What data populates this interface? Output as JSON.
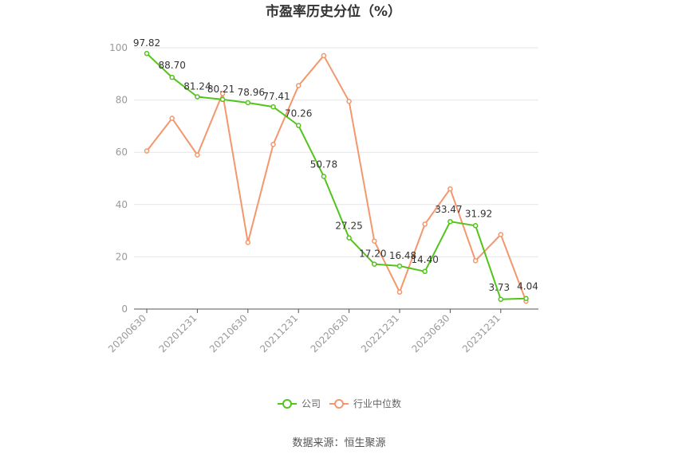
{
  "chart_data": {
    "type": "line",
    "title": "市盈率历史分位（%）",
    "xlabel": "",
    "ylabel": "",
    "ylim": [
      0,
      100
    ],
    "yticks": [
      0,
      20,
      40,
      60,
      80,
      100
    ],
    "grid": true,
    "legend_position": "bottom",
    "x": [
      "20200630",
      "20200930",
      "20201231",
      "20210331",
      "20210630",
      "20210930",
      "20211231",
      "20220331",
      "20220630",
      "20220930",
      "20221231",
      "20230331",
      "20230630",
      "20230930",
      "20231231",
      "20240331"
    ],
    "x_tick_labels": [
      "20200630",
      "20201231",
      "20210630",
      "20211231",
      "20220630",
      "20221231",
      "20230630",
      "20231231"
    ],
    "series": [
      {
        "name": "公司",
        "color": "#52c41a",
        "values": [
          97.82,
          88.7,
          81.24,
          80.21,
          78.96,
          77.41,
          70.26,
          50.78,
          27.25,
          17.2,
          16.48,
          14.4,
          33.47,
          31.92,
          3.73,
          4.04
        ],
        "labels": [
          "97.82",
          "88.70",
          "81.24",
          "80.21",
          "78.96",
          "77.41",
          "70.26",
          "50.78",
          "27.25",
          "17.20",
          "16.48",
          "14.40",
          "33.47",
          "31.92",
          "3.73",
          "4.04"
        ]
      },
      {
        "name": "行业中位数",
        "color": "#f4976c",
        "values": [
          60.5,
          73,
          59,
          82.5,
          25.5,
          63,
          85.5,
          97,
          79.5,
          26,
          6.5,
          32.5,
          46,
          18.5,
          28.5,
          3
        ]
      }
    ]
  },
  "footer": {
    "source": "数据来源：恒生聚源"
  }
}
